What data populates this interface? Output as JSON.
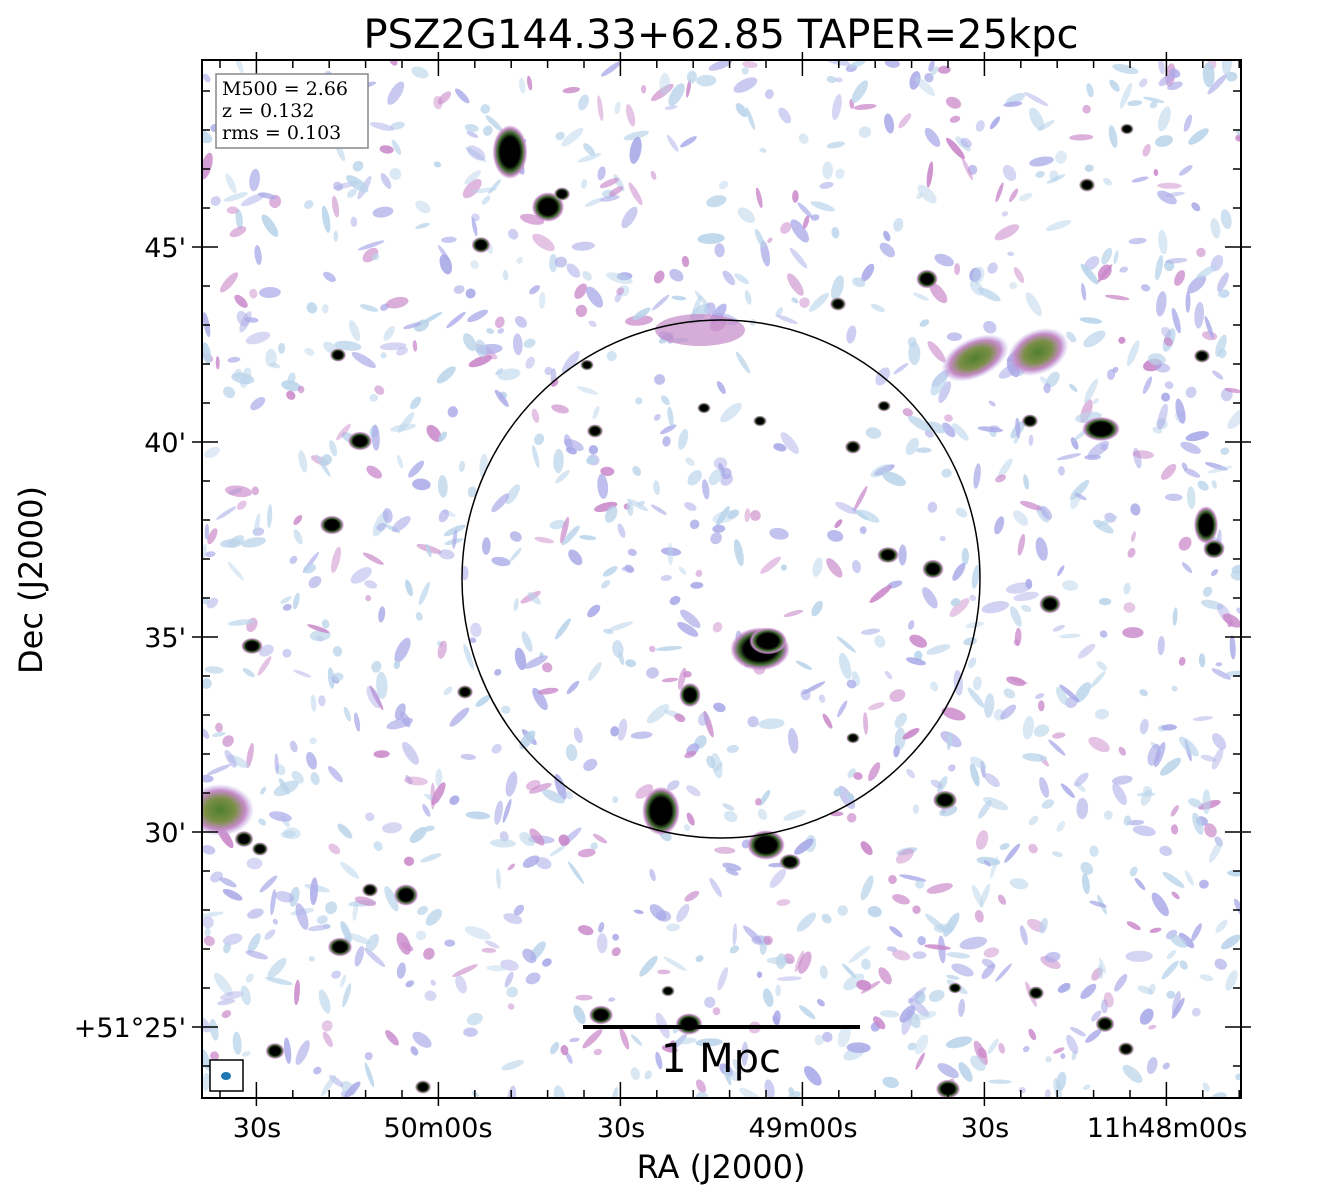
{
  "title": "PSZ2G144.33+62.85 TAPER=25kpc",
  "info": {
    "mass": "M500 = 2.66",
    "redshift": "z = 0.132",
    "rms": "rms = 0.103"
  },
  "axes": {
    "xlabel": "RA (J2000)",
    "ylabel": "Dec (J2000)",
    "x_ticks": [
      "30s",
      "50m00s",
      "30s",
      "49m00s",
      "30s",
      "11h48m00s"
    ],
    "y_ticks": [
      "45'",
      "40'",
      "35'",
      "30'",
      "+51°25'"
    ]
  },
  "scalebar": {
    "label": "1 Mpc"
  },
  "colors": {
    "noise_light": "#b9d4ea",
    "noise_mid": "#a9a9e8",
    "noise_pink": "#c987c9",
    "source_green": "#5b8a3a",
    "source_core": "#000000",
    "circle": "#000000",
    "beam": "#1f77b4"
  }
}
